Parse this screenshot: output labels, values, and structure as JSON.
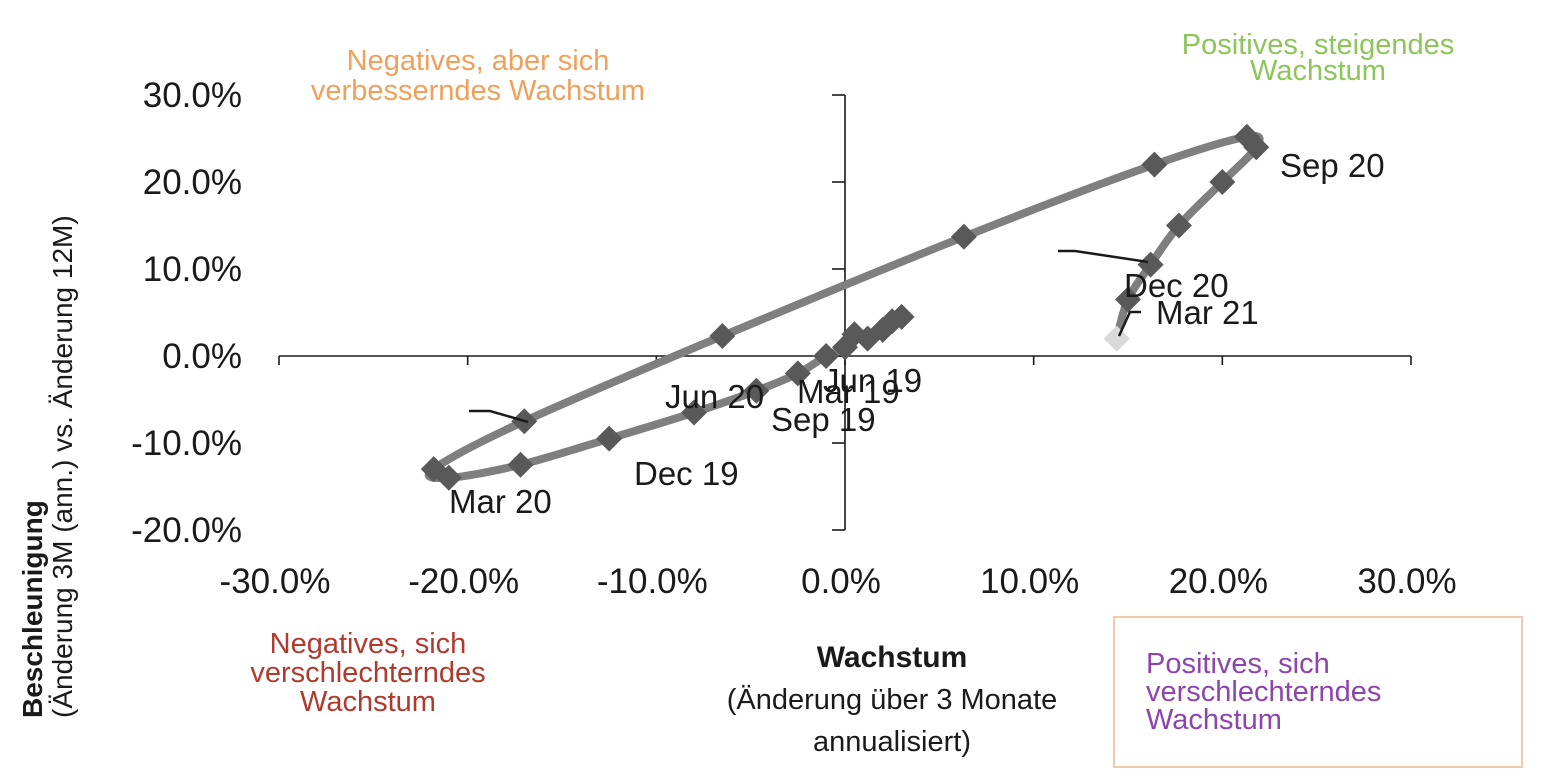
{
  "chart_data": {
    "type": "line",
    "xlabel": "Wachstum",
    "xlabel_sub": [
      "(Änderung über 3 Monate",
      "annualisiert)"
    ],
    "ylabel": "Beschleunigung",
    "ylabel_sub": "(Änderung 3M (ann.) vs. Änderung 12M)",
    "xlim": [
      -30,
      30
    ],
    "ylim": [
      -20,
      30
    ],
    "x_ticks": [
      "-30.0%",
      "-20.0%",
      "-10.0%",
      "0.0%",
      "10.0%",
      "20.0%",
      "30.0%"
    ],
    "y_ticks": [
      "30.0%",
      "20.0%",
      "10.0%",
      "0.0%",
      "-10.0%",
      "-20.0%"
    ],
    "x_tick_values": [
      -30,
      -20,
      -10,
      0,
      10,
      20,
      30
    ],
    "y_tick_values": [
      30,
      20,
      10,
      0,
      -10,
      -20
    ],
    "series": [
      {
        "points": [
          [
            3,
            4.5
          ],
          [
            2.5,
            4
          ],
          [
            2,
            3
          ],
          [
            1.2,
            2
          ],
          [
            0.5,
            2.5
          ],
          [
            0,
            1
          ],
          [
            -1,
            0
          ],
          [
            -2.5,
            -2
          ],
          [
            -4.7,
            -4
          ],
          [
            -8,
            -6.5
          ],
          [
            -12.5,
            -9.5
          ],
          [
            -17.2,
            -12.5
          ],
          [
            -21,
            -14
          ],
          [
            -21.8,
            -13
          ],
          [
            -17,
            -7.5
          ],
          [
            -6.5,
            2.3
          ],
          [
            6.3,
            13.7
          ],
          [
            16.4,
            22
          ],
          [
            21.3,
            25.2
          ],
          [
            21.8,
            24
          ],
          [
            20,
            20
          ],
          [
            17.7,
            15
          ],
          [
            16.2,
            10.5
          ],
          [
            15,
            6.5
          ],
          [
            14.4,
            2
          ]
        ],
        "color": "#7f7f7f",
        "marker_color": "#595959",
        "last_point_color": "#d9d9d9"
      }
    ],
    "point_labels": [
      {
        "text": "Jun 19"
      },
      {
        "text": "Mar 19"
      },
      {
        "text": "Sep 19"
      },
      {
        "text": "Dec 19"
      },
      {
        "text": "Mar 20"
      },
      {
        "text": "Jun 20"
      },
      {
        "text": "Sep 20"
      },
      {
        "text": "Dec 20"
      },
      {
        "text": "Mar 21"
      }
    ],
    "quadrant_labels": [
      {
        "lines": [
          "Negatives, aber sich",
          "verbesserndes Wachstum"
        ],
        "color": "#f0a05a"
      },
      {
        "lines": [
          "Positives, steigendes",
          "Wachstum"
        ],
        "color": "#8dc55a"
      },
      {
        "lines": [
          "Negatives, sich",
          "verschlechterndes",
          "Wachstum"
        ],
        "color": "#b03a2e"
      },
      {
        "lines": [
          "Positives, sich",
          "verschlechterndes",
          "Wachstum"
        ],
        "color": "#8e44ad"
      }
    ]
  }
}
